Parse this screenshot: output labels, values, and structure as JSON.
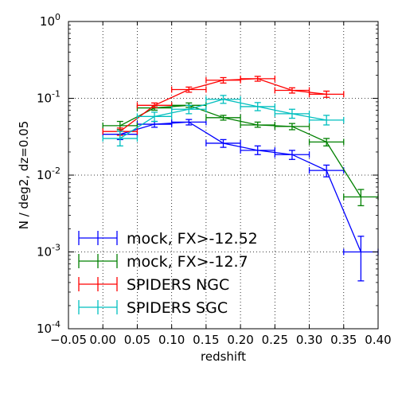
{
  "chart_data": {
    "type": "line",
    "xlabel": "redshift",
    "ylabel": "N / deg2,  dz=0.05",
    "yscale": "log",
    "xlim": [
      -0.05,
      0.4
    ],
    "ylim": [
      0.0001,
      1
    ],
    "grid": true,
    "legend_position": "lower-left",
    "x_ticks": [
      {
        "value": -0.05,
        "label": "−0.05"
      },
      {
        "value": 0.0,
        "label": "0.00"
      },
      {
        "value": 0.05,
        "label": "0.05"
      },
      {
        "value": 0.1,
        "label": "0.10"
      },
      {
        "value": 0.15,
        "label": "0.15"
      },
      {
        "value": 0.2,
        "label": "0.20"
      },
      {
        "value": 0.25,
        "label": "0.25"
      },
      {
        "value": 0.3,
        "label": "0.30"
      },
      {
        "value": 0.35,
        "label": "0.35"
      },
      {
        "value": 0.4,
        "label": "0.40"
      }
    ],
    "y_ticks": [
      {
        "value": 0.0001,
        "base": "10",
        "exp": "-4"
      },
      {
        "value": 0.001,
        "base": "10",
        "exp": "-3"
      },
      {
        "value": 0.01,
        "base": "10",
        "exp": "-2"
      },
      {
        "value": 0.1,
        "base": "10",
        "exp": "-1"
      },
      {
        "value": 1,
        "base": "10",
        "exp": "0"
      }
    ],
    "series": [
      {
        "name": "mock, FX>-12.52",
        "color": "#0000ff",
        "bin_halfwidth": 0.025,
        "x": [
          0.025,
          0.075,
          0.125,
          0.175,
          0.225,
          0.275,
          0.325,
          0.375
        ],
        "y": [
          0.034,
          0.046,
          0.049,
          0.026,
          0.021,
          0.0185,
          0.0115,
          0.001
        ],
        "yerr_low": [
          0.029,
          0.042,
          0.045,
          0.023,
          0.0185,
          0.016,
          0.0095,
          0.00042
        ],
        "yerr_high": [
          0.039,
          0.05,
          0.053,
          0.029,
          0.024,
          0.021,
          0.0135,
          0.0016
        ]
      },
      {
        "name": "mock, FX>-12.7",
        "color": "#008000",
        "bin_halfwidth": 0.025,
        "x": [
          0.025,
          0.075,
          0.125,
          0.175,
          0.225,
          0.275,
          0.325,
          0.375
        ],
        "y": [
          0.044,
          0.075,
          0.081,
          0.056,
          0.045,
          0.043,
          0.027,
          0.0052
        ],
        "yerr_low": [
          0.039,
          0.07,
          0.076,
          0.052,
          0.042,
          0.039,
          0.024,
          0.004
        ],
        "yerr_high": [
          0.05,
          0.08,
          0.087,
          0.06,
          0.049,
          0.047,
          0.03,
          0.0065
        ]
      },
      {
        "name": "SPIDERS NGC",
        "color": "#ff0000",
        "bin_halfwidth": 0.025,
        "x": [
          0.025,
          0.075,
          0.125,
          0.175,
          0.225,
          0.275,
          0.325
        ],
        "y": [
          0.037,
          0.081,
          0.13,
          0.172,
          0.18,
          0.127,
          0.113
        ],
        "yerr_low": [
          0.033,
          0.076,
          0.12,
          0.158,
          0.167,
          0.117,
          0.103
        ],
        "yerr_high": [
          0.041,
          0.087,
          0.14,
          0.186,
          0.193,
          0.137,
          0.124
        ]
      },
      {
        "name": "SPIDERS SGC",
        "color": "#00bfbf",
        "bin_halfwidth": 0.025,
        "x": [
          0.025,
          0.075,
          0.125,
          0.175,
          0.225,
          0.275,
          0.325
        ],
        "y": [
          0.03,
          0.058,
          0.072,
          0.097,
          0.078,
          0.063,
          0.052
        ],
        "yerr_low": [
          0.024,
          0.05,
          0.063,
          0.086,
          0.069,
          0.055,
          0.045
        ],
        "yerr_high": [
          0.037,
          0.066,
          0.081,
          0.109,
          0.088,
          0.072,
          0.06
        ]
      }
    ]
  }
}
